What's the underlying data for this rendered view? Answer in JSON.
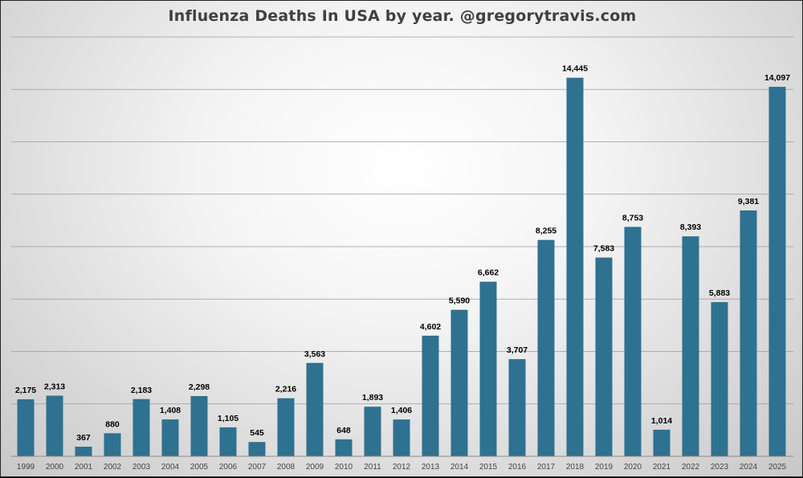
{
  "chart_data": {
    "type": "bar",
    "title": "Influenza Deaths In USA by year.  @gregorytravis.com",
    "xlabel": "",
    "ylabel": "",
    "categories": [
      "1999",
      "2000",
      "2001",
      "2002",
      "2003",
      "2004",
      "2005",
      "2006",
      "2007",
      "2008",
      "2009",
      "2010",
      "2011",
      "2012",
      "2013",
      "2014",
      "2015",
      "2016",
      "2017",
      "2018",
      "2019",
      "2020",
      "2021",
      "2022",
      "2023",
      "2024",
      "2025"
    ],
    "values": [
      2175,
      2313,
      367,
      880,
      2183,
      1408,
      2298,
      1105,
      545,
      2216,
      3563,
      648,
      1893,
      1406,
      4602,
      5590,
      6662,
      3707,
      8255,
      14445,
      7583,
      8753,
      1014,
      8393,
      5883,
      9381,
      14097
    ],
    "value_labels": [
      "2,175",
      "2,313",
      "367",
      "880",
      "2,183",
      "1,408",
      "2,298",
      "1,105",
      "545",
      "2,216",
      "3,563",
      "648",
      "1,893",
      "1,406",
      "4,602",
      "5,590",
      "6,662",
      "3,707",
      "8,255",
      "14,445",
      "7,583",
      "8,753",
      "1,014",
      "8,393",
      "5,883",
      "9,381",
      "14,097"
    ],
    "ylim": [
      0,
      16000
    ],
    "gridline_step": 2000,
    "grid": true,
    "y_tick_labels_shown": false,
    "legend": "none",
    "bar_color": "#2e7190"
  }
}
